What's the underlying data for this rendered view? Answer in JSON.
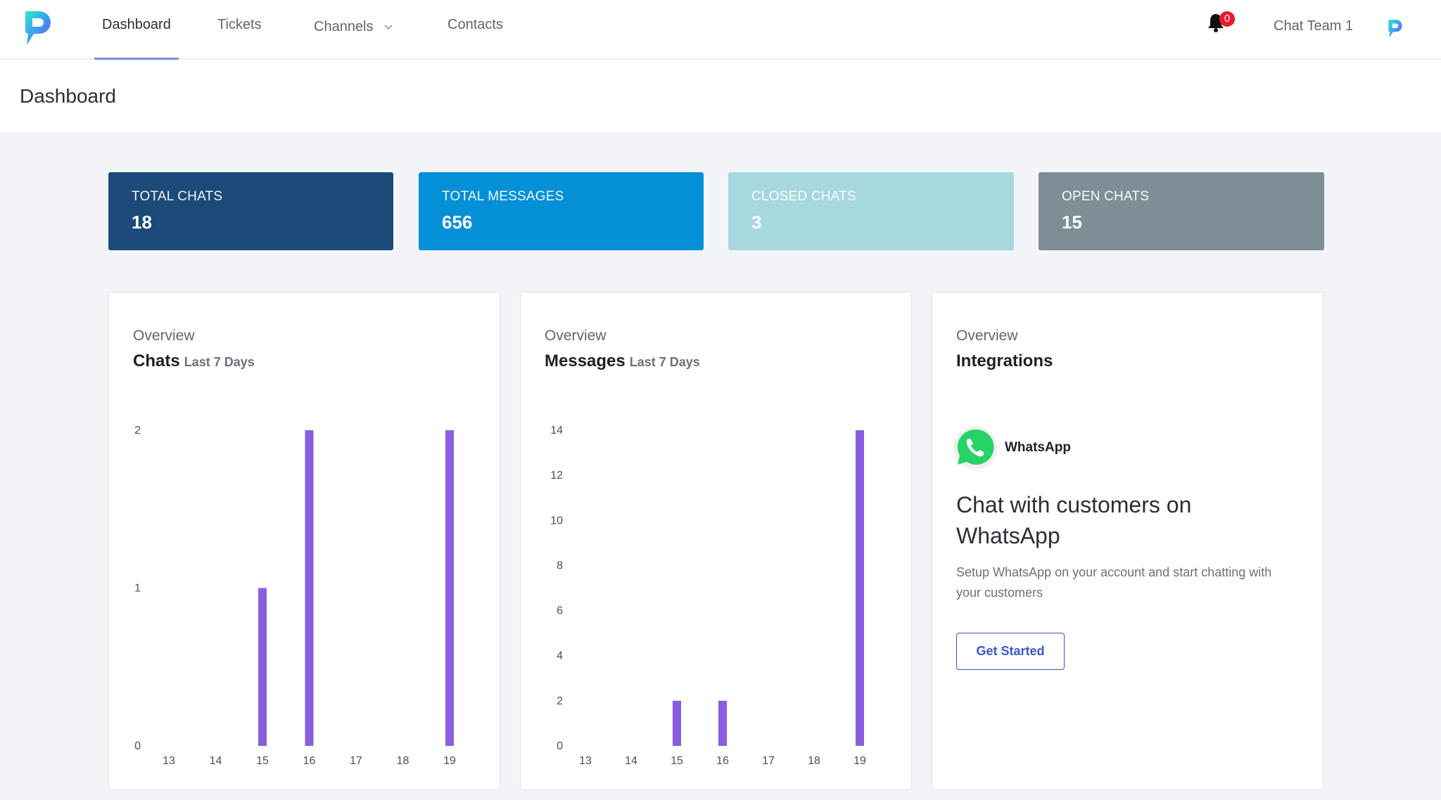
{
  "nav": {
    "items": [
      {
        "label": "Dashboard",
        "active": true
      },
      {
        "label": "Tickets"
      },
      {
        "label": "Channels",
        "has_dropdown": true
      },
      {
        "label": "Contacts"
      }
    ],
    "notification_count": "0",
    "team_name": "Chat Team 1"
  },
  "page": {
    "title": "Dashboard"
  },
  "stats": [
    {
      "label": "TOTAL CHATS",
      "value": "18",
      "color": "#1c4a79"
    },
    {
      "label": "TOTAL MESSAGES",
      "value": "656",
      "color": "#0390d7"
    },
    {
      "label": "CLOSED CHATS",
      "value": "3",
      "color": "#a6d8de"
    },
    {
      "label": "OPEN CHATS",
      "value": "15",
      "color": "#7f8d96"
    }
  ],
  "panels": {
    "chats": {
      "eyebrow": "Overview",
      "title": "Chats",
      "subtitle": "Last 7 Days"
    },
    "messages": {
      "eyebrow": "Overview",
      "title": "Messages",
      "subtitle": "Last 7 Days"
    },
    "integrations": {
      "eyebrow": "Overview",
      "title": "Integrations",
      "app_name": "WhatsApp",
      "heading": "Chat with customers on WhatsApp",
      "description": "Setup WhatsApp on your account and start chatting with your customers",
      "button_label": "Get Started"
    }
  },
  "chart_data": [
    {
      "type": "bar",
      "title": "Chats",
      "categories": [
        "13",
        "14",
        "15",
        "16",
        "17",
        "18",
        "19"
      ],
      "values": [
        0,
        0,
        1,
        2,
        0,
        0,
        2
      ],
      "yticks": [
        0,
        1,
        2
      ],
      "ylim": [
        0,
        2
      ],
      "color": "#8a5ee0",
      "grid": false
    },
    {
      "type": "bar",
      "title": "Messages",
      "categories": [
        "13",
        "14",
        "15",
        "16",
        "17",
        "18",
        "19"
      ],
      "values": [
        0,
        0,
        2,
        2,
        0,
        0,
        14
      ],
      "yticks": [
        0,
        2,
        4,
        6,
        8,
        10,
        12,
        14
      ],
      "ylim": [
        0,
        14
      ],
      "color": "#8a5ee0",
      "grid": false
    }
  ],
  "colors": {
    "accent": "#3a56c6",
    "bar": "#8a5ee0",
    "whatsapp": "#25d366",
    "badge": "#e8192c"
  },
  "icons": {
    "logo": "p-logo-icon",
    "bell": "bell-icon",
    "whatsapp": "whatsapp-icon",
    "dropdown": "chevron-down-icon"
  }
}
